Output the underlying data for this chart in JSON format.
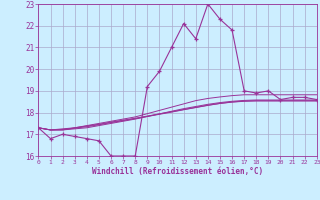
{
  "x": [
    0,
    1,
    2,
    3,
    4,
    5,
    6,
    7,
    8,
    9,
    10,
    11,
    12,
    13,
    14,
    15,
    16,
    17,
    18,
    19,
    20,
    21,
    22,
    23
  ],
  "y_main": [
    17.3,
    16.8,
    17.0,
    16.9,
    16.8,
    16.7,
    16.0,
    16.0,
    16.0,
    19.2,
    19.9,
    21.0,
    22.1,
    21.4,
    23.0,
    22.3,
    21.8,
    19.0,
    18.9,
    19.0,
    18.6,
    18.7,
    18.7,
    18.6
  ],
  "y_smooth1": [
    17.3,
    17.2,
    17.2,
    17.3,
    17.4,
    17.5,
    17.6,
    17.7,
    17.8,
    17.95,
    18.1,
    18.25,
    18.4,
    18.55,
    18.65,
    18.72,
    18.78,
    18.82,
    18.82,
    18.82,
    18.82,
    18.82,
    18.82,
    18.82
  ],
  "y_smooth2": [
    17.3,
    17.2,
    17.2,
    17.25,
    17.3,
    17.4,
    17.5,
    17.6,
    17.7,
    17.82,
    17.94,
    18.06,
    18.18,
    18.28,
    18.38,
    18.46,
    18.52,
    18.56,
    18.58,
    18.58,
    18.58,
    18.58,
    18.58,
    18.58
  ],
  "y_smooth3": [
    17.3,
    17.2,
    17.25,
    17.3,
    17.38,
    17.46,
    17.56,
    17.65,
    17.74,
    17.84,
    17.94,
    18.04,
    18.14,
    18.24,
    18.34,
    18.42,
    18.48,
    18.52,
    18.54,
    18.54,
    18.54,
    18.54,
    18.54,
    18.54
  ],
  "y_smooth4": [
    17.3,
    17.2,
    17.22,
    17.28,
    17.35,
    17.44,
    17.54,
    17.63,
    17.72,
    17.82,
    17.92,
    18.02,
    18.13,
    18.23,
    18.33,
    18.42,
    18.49,
    18.53,
    18.54,
    18.54,
    18.54,
    18.54,
    18.54,
    18.54
  ],
  "line_color": "#993399",
  "bg_color": "#cceeff",
  "grid_color": "#aaaacc",
  "xlabel": "Windchill (Refroidissement éolien,°C)",
  "ylim": [
    16,
    23
  ],
  "xlim": [
    0,
    23
  ],
  "yticks": [
    16,
    17,
    18,
    19,
    20,
    21,
    22,
    23
  ],
  "xticks": [
    0,
    1,
    2,
    3,
    4,
    5,
    6,
    7,
    8,
    9,
    10,
    11,
    12,
    13,
    14,
    15,
    16,
    17,
    18,
    19,
    20,
    21,
    22,
    23
  ]
}
